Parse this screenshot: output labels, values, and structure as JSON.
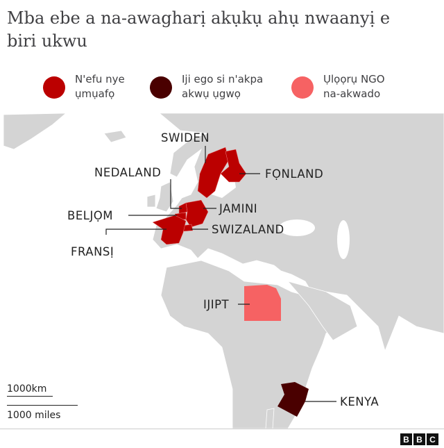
{
  "title": "Mba ebe a na-awagharị akụkụ ahụ nwaanyị e biri ukwu",
  "legend": [
    {
      "label": "N'efu nye ụmụafọ",
      "color": "#bb0000"
    },
    {
      "label": "Iji ego si n'akpa akwụ ụgwọ",
      "color": "#4a0000"
    },
    {
      "label": "Ụlọọrụ NGO na-akwado",
      "color": "#f66263"
    }
  ],
  "countries": {
    "sweden": "SWIDEN",
    "finland": "FỌNLAND",
    "netherlands": "NEDALAND",
    "germany": "JAMINI",
    "belgium": "BELJỌM",
    "switzerland": "SWIZALAND",
    "france": "FRANSỊ",
    "egypt": "IJIPT",
    "kenya": "KENYA"
  },
  "scale": {
    "km": "1000km",
    "miles": "1000 miles"
  },
  "logo": [
    "B",
    "B",
    "C"
  ],
  "colors": {
    "land": "#d4d4d4",
    "free": "#bb0000",
    "insurance": "#4a0000",
    "ngo": "#f66263"
  }
}
